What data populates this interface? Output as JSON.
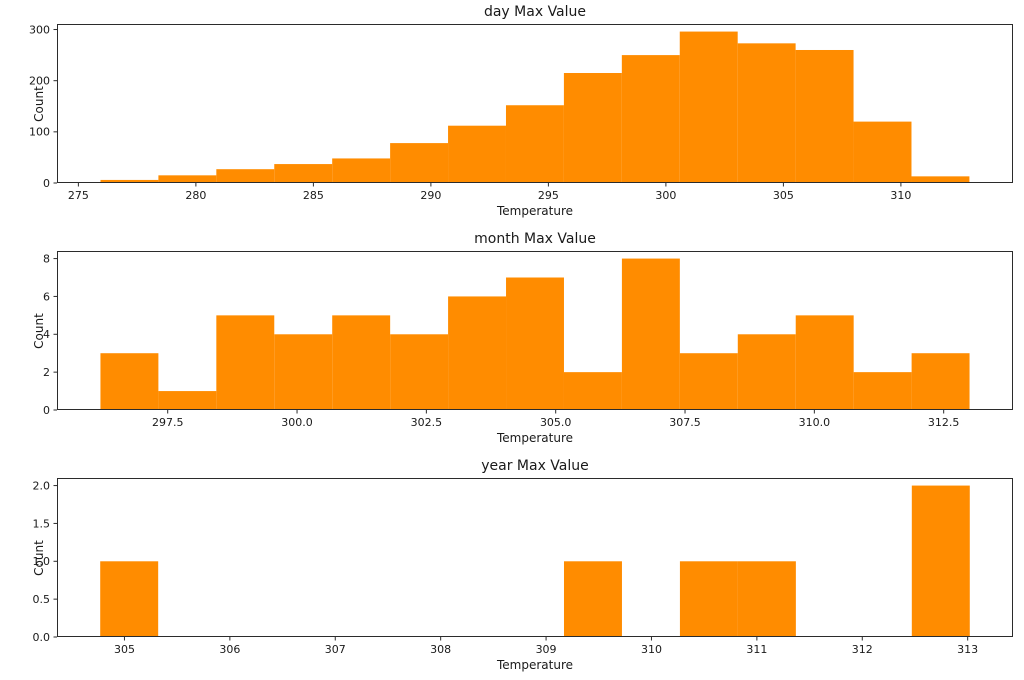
{
  "figure": {
    "background_color": "#ffffff",
    "text_color": "#1a1a1a",
    "spine_color": "#2b2b2b"
  },
  "chart_data": [
    {
      "type": "bar",
      "subtype": "histogram",
      "title": "day Max Value",
      "xlabel": "Temperature",
      "ylabel": "Count",
      "bar_color": "#ff8c00",
      "bin_start": 275.94,
      "bin_width": 2.465,
      "counts": [
        6,
        15,
        27,
        37,
        48,
        78,
        112,
        152,
        215,
        250,
        296,
        273,
        260,
        120,
        13
      ],
      "xlim": [
        274.09,
        314.77
      ],
      "ylim": [
        0,
        310.8
      ],
      "xticks": [
        275,
        280,
        285,
        290,
        295,
        300,
        305,
        310
      ],
      "xtick_labels": [
        "275",
        "280",
        "285",
        "290",
        "295",
        "300",
        "305",
        "310"
      ],
      "yticks": [
        0,
        100,
        200,
        300
      ],
      "ytick_labels": [
        "0",
        "100",
        "200",
        "300"
      ],
      "grid": false,
      "legend": null
    },
    {
      "type": "bar",
      "subtype": "histogram",
      "title": "month Max Value",
      "xlabel": "Temperature",
      "ylabel": "Count",
      "bar_color": "#ff8c00",
      "bin_start": 296.2,
      "bin_width": 1.12,
      "counts": [
        3,
        1,
        5,
        4,
        5,
        4,
        6,
        7,
        2,
        8,
        3,
        4,
        5,
        2,
        3
      ],
      "xlim": [
        295.36,
        313.84
      ],
      "ylim": [
        0,
        8.4
      ],
      "xticks": [
        297.5,
        300.0,
        302.5,
        305.0,
        307.5,
        310.0,
        312.5
      ],
      "xtick_labels": [
        "297.5",
        "300.0",
        "302.5",
        "305.0",
        "307.5",
        "310.0",
        "312.5"
      ],
      "yticks": [
        0,
        2,
        4,
        6,
        8
      ],
      "ytick_labels": [
        "0",
        "2",
        "4",
        "6",
        "8"
      ],
      "grid": false,
      "legend": null
    },
    {
      "type": "bar",
      "subtype": "histogram",
      "title": "year Max Value",
      "xlabel": "Temperature",
      "ylabel": "Count",
      "bar_color": "#ff8c00",
      "bin_start": 304.77,
      "bin_width": 0.55,
      "counts": [
        1,
        0,
        0,
        0,
        0,
        0,
        0,
        0,
        1,
        0,
        1,
        1,
        0,
        0,
        2
      ],
      "xlim": [
        304.36,
        313.43
      ],
      "ylim": [
        0,
        2.1
      ],
      "xticks": [
        305,
        306,
        307,
        308,
        309,
        310,
        311,
        312,
        313
      ],
      "xtick_labels": [
        "305",
        "306",
        "307",
        "308",
        "309",
        "310",
        "311",
        "312",
        "313"
      ],
      "yticks": [
        0.0,
        0.5,
        1.0,
        1.5,
        2.0
      ],
      "ytick_labels": [
        "0.0",
        "0.5",
        "1.0",
        "1.5",
        "2.0"
      ],
      "grid": false,
      "legend": null
    }
  ]
}
